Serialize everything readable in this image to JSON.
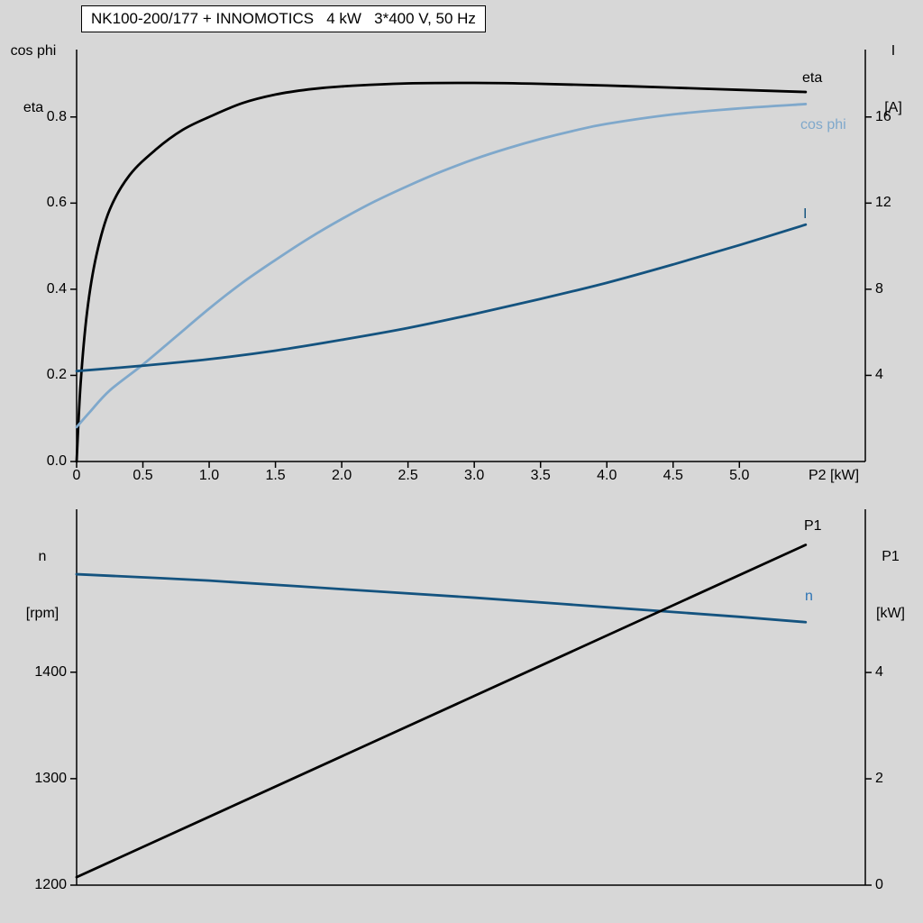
{
  "title_box": "NK100-200/177 + INNOMOTICS   4 kW   3*400 V, 50 Hz",
  "colors": {
    "background": "#d7d7d7",
    "axis": "#000000",
    "eta": "#000000",
    "cos_phi": "#7fa8cb",
    "current": "#14537f",
    "speed": "#14537f",
    "speed_label": "#2e74b5",
    "p1": "#000000"
  },
  "chart_data": [
    {
      "type": "line",
      "title": "NK100-200/177 + INNOMOTICS   4 kW   3*400 V, 50 Hz",
      "x_label": "P2 [kW]",
      "left_axis_title": [
        "cos phi",
        "eta"
      ],
      "right_axis_title": [
        "I",
        "[A]"
      ],
      "x_range": [
        0,
        5.95
      ],
      "left_range": [
        0,
        0.9565
      ],
      "right_range": [
        0,
        19.13
      ],
      "grid": false,
      "x_tick_values": [
        0,
        0.5,
        1.0,
        1.5,
        2.0,
        2.5,
        3.0,
        3.5,
        4.0,
        4.5,
        5.0
      ],
      "x_tick_labels": [
        "0",
        "0.5",
        "1.0",
        "1.5",
        "2.0",
        "2.5",
        "3.0",
        "3.5",
        "4.0",
        "4.5",
        "5.0"
      ],
      "left_tick_values": [
        0.0,
        0.2,
        0.4,
        0.6,
        0.8
      ],
      "left_tick_labels": [
        "0.0",
        "0.2",
        "0.4",
        "0.6",
        "0.8"
      ],
      "right_tick_values": [
        4,
        8,
        12,
        16
      ],
      "right_tick_labels": [
        "4",
        "8",
        "12",
        "16"
      ],
      "series": [
        {
          "name": "eta",
          "axis": "left",
          "color": "#000000",
          "x": [
            0,
            0.03,
            0.08,
            0.15,
            0.25,
            0.4,
            0.6,
            0.8,
            1.0,
            1.25,
            1.5,
            1.75,
            2.0,
            2.5,
            3.0,
            3.5,
            4.0,
            4.5,
            5.0,
            5.5
          ],
          "y": [
            0,
            0.18,
            0.35,
            0.48,
            0.585,
            0.665,
            0.725,
            0.77,
            0.8,
            0.832,
            0.852,
            0.864,
            0.871,
            0.878,
            0.879,
            0.877,
            0.873,
            0.868,
            0.863,
            0.858
          ]
        },
        {
          "name": "cos phi",
          "axis": "left",
          "color": "#7fa8cb",
          "x": [
            0,
            0.1,
            0.25,
            0.5,
            0.75,
            1.0,
            1.25,
            1.5,
            1.75,
            2.0,
            2.25,
            2.5,
            2.75,
            3.0,
            3.25,
            3.5,
            3.75,
            4.0,
            4.5,
            5.0,
            5.5
          ],
          "y": [
            0.08,
            0.115,
            0.165,
            0.225,
            0.29,
            0.355,
            0.415,
            0.468,
            0.518,
            0.563,
            0.604,
            0.64,
            0.673,
            0.702,
            0.727,
            0.749,
            0.768,
            0.784,
            0.806,
            0.82,
            0.83
          ]
        },
        {
          "name": "I",
          "axis": "right",
          "color": "#14537f",
          "x": [
            0,
            0.5,
            1.0,
            1.5,
            2.0,
            2.5,
            3.0,
            3.5,
            4.0,
            4.5,
            5.0,
            5.5
          ],
          "y": [
            4.2,
            4.45,
            4.75,
            5.15,
            5.65,
            6.2,
            6.85,
            7.55,
            8.3,
            9.15,
            10.05,
            11.0
          ]
        }
      ]
    },
    {
      "type": "line",
      "title": "",
      "x_label": "",
      "left_axis_title": [
        "n",
        "[rpm]"
      ],
      "right_axis_title": [
        "P1",
        "[kW]"
      ],
      "x_range": [
        0,
        5.95
      ],
      "left_range": [
        1200,
        1553
      ],
      "right_range": [
        0,
        7.07
      ],
      "grid": false,
      "x_tick_values": [],
      "x_tick_labels": [],
      "left_tick_values": [
        1200,
        1300,
        1400
      ],
      "left_tick_labels": [
        "1200",
        "1300",
        "1400"
      ],
      "right_tick_values": [
        0,
        2,
        4
      ],
      "right_tick_labels": [
        "0",
        "2",
        "4"
      ],
      "series": [
        {
          "name": "n",
          "axis": "left",
          "color": "#14537f",
          "label_color": "#2e74b5",
          "x": [
            0,
            1,
            2,
            3,
            4,
            5,
            5.5
          ],
          "y": [
            1492,
            1486,
            1478,
            1470,
            1461,
            1452,
            1447
          ]
        },
        {
          "name": "P1",
          "axis": "right",
          "color": "#000000",
          "x": [
            0,
            5.5
          ],
          "y": [
            0.15,
            6.4
          ]
        }
      ]
    }
  ]
}
